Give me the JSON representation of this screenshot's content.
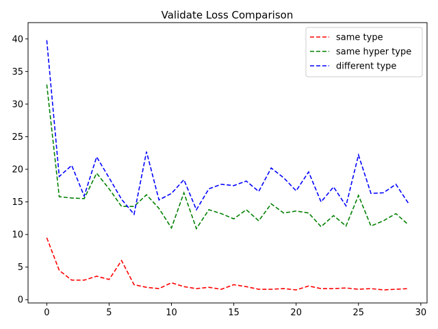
{
  "chart_data": {
    "type": "line",
    "title": "Validate Loss Comparison",
    "xlabel": "",
    "ylabel": "",
    "xlim": [
      -1.5,
      30.5
    ],
    "ylim": [
      -0.5,
      42.5
    ],
    "xticks": [
      0,
      5,
      10,
      15,
      20,
      25,
      30
    ],
    "yticks": [
      0,
      5,
      10,
      15,
      20,
      25,
      30,
      35,
      40
    ],
    "grid": false,
    "legend_position": "top-right",
    "x": [
      0,
      1,
      2,
      3,
      4,
      5,
      6,
      7,
      8,
      9,
      10,
      11,
      12,
      13,
      14,
      15,
      16,
      17,
      18,
      19,
      20,
      21,
      22,
      23,
      24,
      25,
      26,
      27,
      28,
      29
    ],
    "series": [
      {
        "name": "same type",
        "color": "#ff0000",
        "values": [
          9.5,
          4.5,
          3.0,
          3.0,
          3.6,
          3.1,
          6.0,
          2.3,
          1.9,
          1.7,
          2.6,
          2.0,
          1.7,
          1.9,
          1.6,
          2.3,
          2.0,
          1.6,
          1.6,
          1.7,
          1.5,
          2.1,
          1.7,
          1.7,
          1.8,
          1.6,
          1.7,
          1.5,
          1.6,
          1.7
        ]
      },
      {
        "name": "same hyper type",
        "color": "#008000",
        "values": [
          33.0,
          15.8,
          15.6,
          15.5,
          19.4,
          17.0,
          14.3,
          14.3,
          16.1,
          14.0,
          11.0,
          16.4,
          10.9,
          13.8,
          13.2,
          12.4,
          13.8,
          12.1,
          14.7,
          13.3,
          13.6,
          13.3,
          11.2,
          12.9,
          11.3,
          16.0,
          11.3,
          12.1,
          13.2,
          11.5
        ]
      },
      {
        "name": "different type",
        "color": "#0000ff",
        "values": [
          39.8,
          18.9,
          20.6,
          15.9,
          21.9,
          18.7,
          15.4,
          13.1,
          22.7,
          15.3,
          16.3,
          18.4,
          13.8,
          17.0,
          17.7,
          17.5,
          18.2,
          16.6,
          20.2,
          18.7,
          16.7,
          19.6,
          15.0,
          17.3,
          14.4,
          22.2,
          16.3,
          16.4,
          17.7,
          14.8
        ]
      }
    ]
  }
}
